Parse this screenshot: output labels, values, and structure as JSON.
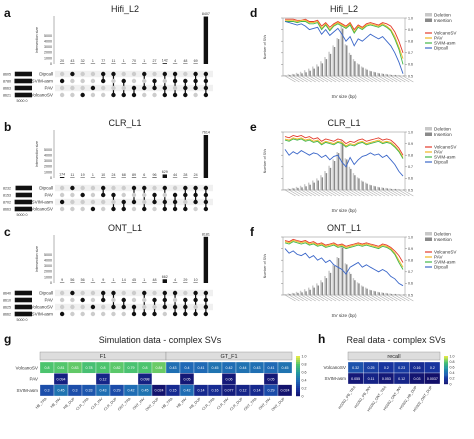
{
  "panels": {
    "a": "a",
    "b": "b",
    "c": "c",
    "d": "d",
    "e": "e",
    "f": "f",
    "g": "g",
    "h": "h"
  },
  "colors": {
    "bar": "#111111",
    "dot_on": "#111111",
    "dot_off": "#cccccc",
    "hist_deletion": "#c8c8c8",
    "hist_insertion": "#8a8a8a",
    "VolcanoSV": "#e33b2c",
    "PAV": "#f0b623",
    "SVIM-asm": "#42b84a",
    "Dipcall": "#3b67c9"
  },
  "upset": [
    {
      "title": "Hifi_L2",
      "ylabel": "Intersection size",
      "yticks": [
        "5000",
        "4000",
        "3000",
        "2000",
        "1000",
        "0"
      ],
      "sets": [
        "Dipcall",
        "SVIM-asm",
        "PAV",
        "VolcanoSV"
      ],
      "set_sizes": [
        8605,
        8780,
        8663,
        8621
      ],
      "set_size_labels": [
        "8605",
        "8780",
        "8663",
        "8621"
      ],
      "set_axis_label": "5000 0",
      "intersection_labels": [
        "20",
        "43",
        "32",
        "1",
        "77",
        "11",
        "1",
        "70",
        "1",
        "27",
        "142",
        "4",
        "48",
        "69",
        "8407"
      ],
      "intersection_values": [
        20,
        43,
        32,
        1,
        77,
        11,
        1,
        70,
        1,
        27,
        142,
        4,
        48,
        69,
        8407
      ],
      "memberships": [
        [
          1
        ],
        [
          0
        ],
        [
          3
        ],
        [
          2
        ],
        [
          0,
          1
        ],
        [
          0,
          3
        ],
        [
          1,
          3
        ],
        [
          2,
          3
        ],
        [
          0,
          2
        ],
        [
          1,
          2
        ],
        [
          0,
          2,
          3
        ],
        [
          0,
          1,
          3
        ],
        [
          1,
          2,
          3
        ],
        [
          0,
          1,
          2
        ],
        [
          0,
          1,
          2,
          3
        ]
      ]
    },
    {
      "title": "CLR_L1",
      "ylabel": "Intersection size",
      "yticks": [
        "5000",
        "4000",
        "3000",
        "2000",
        "1000",
        "0"
      ],
      "sets": [
        "Dipcall",
        "PAV",
        "SVIM-asm",
        "VolcanoSV"
      ],
      "set_sizes": [
        8232,
        8153,
        8702,
        8663
      ],
      "set_size_labels": [
        "8232",
        "8153",
        "8702",
        "8663"
      ],
      "set_axis_label": "5000 0",
      "intersection_labels": [
        "174",
        "11",
        "19",
        "1",
        "10",
        "24",
        "68",
        "89",
        "6",
        "96",
        "629",
        "44",
        "28",
        "24",
        "7614"
      ],
      "intersection_values": [
        174,
        11,
        19,
        1,
        10,
        24,
        68,
        89,
        6,
        96,
        629,
        44,
        28,
        24,
        7614
      ],
      "memberships": [
        [
          2
        ],
        [
          0
        ],
        [
          1
        ],
        [
          3
        ],
        [
          0,
          1
        ],
        [
          1,
          3
        ],
        [
          2,
          3
        ],
        [
          0,
          2
        ],
        [
          0,
          3
        ],
        [
          1,
          2
        ],
        [
          0,
          2,
          3
        ],
        [
          1,
          2,
          3
        ],
        [
          0,
          1,
          3
        ],
        [
          0,
          1,
          2
        ],
        [
          0,
          1,
          2,
          3
        ]
      ]
    },
    {
      "title": "ONT_L1",
      "ylabel": "Intersection size",
      "yticks": [
        "5000",
        "4000",
        "3000",
        "2000",
        "1000",
        "0"
      ],
      "sets": [
        "Dipcall",
        "PAV",
        "VolcanoSV",
        "SVIM-asm"
      ],
      "set_sizes": [
        8640,
        8610,
        8625,
        8662
      ],
      "set_size_labels": [
        "8640",
        "8610",
        "8625",
        "8662"
      ],
      "set_axis_label": "5000 0",
      "intersection_labels": [
        "9",
        "56",
        "56",
        "1",
        "9",
        "1",
        "14",
        "45",
        "1",
        "48",
        "662",
        "4",
        "29",
        "10",
        "8181"
      ],
      "intersection_values": [
        9,
        56,
        56,
        1,
        9,
        1,
        14,
        45,
        1,
        48,
        662,
        4,
        29,
        10,
        8181
      ],
      "memberships": [
        [
          3
        ],
        [
          0
        ],
        [
          1
        ],
        [
          2
        ],
        [
          0,
          1
        ],
        [
          0,
          2
        ],
        [
          1,
          2
        ],
        [
          2,
          3
        ],
        [
          0,
          3
        ],
        [
          1,
          3
        ],
        [
          0,
          1,
          2
        ],
        [
          0,
          2,
          3
        ],
        [
          1,
          2,
          3
        ],
        [
          0,
          1,
          3
        ],
        [
          0,
          1,
          2,
          3
        ]
      ]
    }
  ],
  "chart_data": [
    {
      "type": "line",
      "panel": "d",
      "title": "Hifi_L2",
      "ylabel": "Number of SVs",
      "xlabel": "SV size (bp)",
      "y2_ticks": [
        "1.0",
        "0.9",
        "0.8",
        "0.7",
        "0.6",
        "0.5"
      ],
      "y2_range": [
        0.5,
        1.0
      ],
      "legend": [
        "Deletion",
        "Insertion",
        "VolcanoSV",
        "PAV",
        "SVIM-asm",
        "Dipcall"
      ],
      "hist_deletion": [
        2,
        3,
        4,
        6,
        8,
        11,
        14,
        18,
        22,
        28,
        36,
        46,
        58,
        72,
        96,
        60,
        44,
        32,
        24,
        18,
        14,
        10,
        8,
        6,
        5,
        4,
        3,
        2,
        2,
        1
      ],
      "hist_insertion": [
        1,
        2,
        3,
        4,
        5,
        7,
        10,
        14,
        18,
        24,
        32,
        42,
        55,
        70,
        90,
        58,
        40,
        28,
        22,
        16,
        12,
        9,
        7,
        5,
        4,
        3,
        2,
        2,
        1,
        1
      ],
      "series": [
        {
          "name": "VolcanoSV",
          "values": [
            0.99,
            0.99,
            0.99,
            0.98,
            0.98,
            0.99,
            0.97,
            0.97,
            0.98,
            0.93,
            0.96,
            0.92,
            0.95,
            0.97,
            0.95,
            0.93,
            0.96,
            0.9,
            0.94,
            0.92,
            0.95,
            0.96,
            0.95,
            0.94,
            0.96,
            0.95,
            0.93,
            0.88,
            0.8,
            0.7
          ]
        },
        {
          "name": "PAV",
          "values": [
            0.98,
            0.98,
            0.98,
            0.97,
            0.98,
            0.98,
            0.96,
            0.96,
            0.97,
            0.91,
            0.95,
            0.9,
            0.94,
            0.96,
            0.94,
            0.92,
            0.95,
            0.88,
            0.93,
            0.91,
            0.94,
            0.95,
            0.94,
            0.93,
            0.95,
            0.93,
            0.9,
            0.84,
            0.75,
            0.65
          ]
        },
        {
          "name": "SVIM-asm",
          "values": [
            0.97,
            0.97,
            0.97,
            0.96,
            0.97,
            0.97,
            0.95,
            0.95,
            0.96,
            0.9,
            0.94,
            0.89,
            0.93,
            0.95,
            0.93,
            0.91,
            0.94,
            0.87,
            0.92,
            0.9,
            0.93,
            0.94,
            0.93,
            0.92,
            0.94,
            0.92,
            0.89,
            0.82,
            0.73,
            0.6
          ]
        },
        {
          "name": "Dipcall",
          "values": [
            0.97,
            0.96,
            0.95,
            0.94,
            0.95,
            0.93,
            0.9,
            0.91,
            0.92,
            0.86,
            0.9,
            0.85,
            0.88,
            0.91,
            0.86,
            0.8,
            0.84,
            0.76,
            0.82,
            0.8,
            0.83,
            0.86,
            0.84,
            0.82,
            0.84,
            0.8,
            0.76,
            0.7,
            0.62,
            0.52
          ]
        }
      ]
    },
    {
      "type": "line",
      "panel": "e",
      "title": "CLR_L1",
      "ylabel": "Number of SVs",
      "xlabel": "SV size (bp)",
      "y2_ticks": [
        "1.0",
        "0.9",
        "0.8",
        "0.7",
        "0.6",
        "0.5"
      ],
      "y2_range": [
        0.5,
        1.0
      ],
      "legend": [
        "Deletion",
        "Insertion",
        "VolcanoSV",
        "PAV",
        "SVIM-asm",
        "Dipcall"
      ],
      "hist_deletion": [
        2,
        3,
        4,
        6,
        8,
        11,
        14,
        18,
        22,
        28,
        36,
        46,
        58,
        72,
        96,
        60,
        44,
        32,
        24,
        18,
        14,
        10,
        8,
        6,
        5,
        4,
        3,
        2,
        2,
        1
      ],
      "hist_insertion": [
        1,
        2,
        3,
        4,
        5,
        7,
        10,
        14,
        18,
        24,
        32,
        42,
        55,
        70,
        90,
        58,
        40,
        28,
        22,
        16,
        12,
        9,
        7,
        5,
        4,
        3,
        2,
        2,
        1,
        1
      ],
      "series": [
        {
          "name": "VolcanoSV",
          "values": [
            0.96,
            0.95,
            0.97,
            0.96,
            0.97,
            0.95,
            0.96,
            0.94,
            0.95,
            0.92,
            0.94,
            0.93,
            0.92,
            0.94,
            0.93,
            0.9,
            0.92,
            0.91,
            0.93,
            0.94,
            0.92,
            0.93,
            0.94,
            0.95,
            0.93,
            0.94,
            0.93,
            0.9,
            0.86,
            0.8
          ]
        },
        {
          "name": "PAV",
          "values": [
            0.94,
            0.93,
            0.95,
            0.94,
            0.95,
            0.93,
            0.94,
            0.92,
            0.93,
            0.9,
            0.92,
            0.91,
            0.9,
            0.92,
            0.91,
            0.88,
            0.9,
            0.89,
            0.91,
            0.92,
            0.9,
            0.91,
            0.92,
            0.93,
            0.91,
            0.92,
            0.91,
            0.88,
            0.84,
            0.78
          ]
        },
        {
          "name": "SVIM-asm",
          "values": [
            0.93,
            0.92,
            0.94,
            0.93,
            0.94,
            0.92,
            0.93,
            0.91,
            0.92,
            0.89,
            0.91,
            0.9,
            0.89,
            0.91,
            0.9,
            0.87,
            0.89,
            0.88,
            0.9,
            0.91,
            0.89,
            0.9,
            0.91,
            0.92,
            0.9,
            0.91,
            0.9,
            0.87,
            0.83,
            0.77
          ]
        },
        {
          "name": "Dipcall",
          "values": [
            0.85,
            0.8,
            0.83,
            0.81,
            0.84,
            0.82,
            0.8,
            0.82,
            0.81,
            0.78,
            0.8,
            0.76,
            0.79,
            0.8,
            0.74,
            0.7,
            0.78,
            0.72,
            0.76,
            0.79,
            0.8,
            0.82,
            0.8,
            0.81,
            0.78,
            0.8,
            0.76,
            0.72,
            0.66,
            0.62
          ]
        }
      ]
    },
    {
      "type": "line",
      "panel": "f",
      "title": "ONT_L1",
      "ylabel": "Number of SVs",
      "xlabel": "SV size (bp)",
      "y2_ticks": [
        "1.0",
        "0.9",
        "0.8",
        "0.7",
        "0.6",
        "0.5"
      ],
      "y2_range": [
        0.5,
        1.0
      ],
      "legend": [
        "Deletion",
        "Insertion",
        "VolcanoSV",
        "PAV",
        "SVIM-asm",
        "Dipcall"
      ],
      "hist_deletion": [
        2,
        3,
        4,
        6,
        8,
        11,
        14,
        18,
        22,
        28,
        36,
        46,
        58,
        72,
        96,
        60,
        44,
        32,
        24,
        18,
        14,
        10,
        8,
        6,
        5,
        4,
        3,
        2,
        2,
        1
      ],
      "hist_insertion": [
        1,
        2,
        3,
        4,
        5,
        7,
        10,
        14,
        18,
        24,
        32,
        42,
        55,
        70,
        90,
        58,
        40,
        28,
        22,
        16,
        12,
        9,
        7,
        5,
        4,
        3,
        2,
        2,
        1,
        1
      ],
      "series": [
        {
          "name": "VolcanoSV",
          "values": [
            0.97,
            0.96,
            0.98,
            0.97,
            0.96,
            0.97,
            0.95,
            0.96,
            0.94,
            0.95,
            0.93,
            0.94,
            0.95,
            0.93,
            0.94,
            0.92,
            0.93,
            0.94,
            0.95,
            0.94,
            0.95,
            0.94,
            0.93,
            0.92,
            0.94,
            0.93,
            0.91,
            0.88,
            0.84,
            0.78
          ]
        },
        {
          "name": "PAV",
          "values": [
            0.96,
            0.95,
            0.97,
            0.96,
            0.95,
            0.96,
            0.94,
            0.95,
            0.93,
            0.94,
            0.92,
            0.93,
            0.94,
            0.92,
            0.93,
            0.91,
            0.92,
            0.93,
            0.94,
            0.93,
            0.94,
            0.93,
            0.92,
            0.91,
            0.93,
            0.92,
            0.9,
            0.86,
            0.8,
            0.74
          ]
        },
        {
          "name": "SVIM-asm",
          "values": [
            0.95,
            0.94,
            0.96,
            0.95,
            0.94,
            0.95,
            0.93,
            0.94,
            0.92,
            0.93,
            0.91,
            0.92,
            0.93,
            0.91,
            0.92,
            0.9,
            0.91,
            0.92,
            0.93,
            0.92,
            0.93,
            0.92,
            0.91,
            0.9,
            0.92,
            0.91,
            0.89,
            0.85,
            0.78,
            0.72
          ]
        },
        {
          "name": "Dipcall",
          "values": [
            0.9,
            0.86,
            0.88,
            0.85,
            0.84,
            0.86,
            0.82,
            0.84,
            0.8,
            0.82,
            0.78,
            0.8,
            0.76,
            0.74,
            0.72,
            0.68,
            0.74,
            0.76,
            0.78,
            0.74,
            0.76,
            0.74,
            0.72,
            0.7,
            0.72,
            0.7,
            0.66,
            0.64,
            0.6,
            0.58
          ]
        }
      ]
    },
    {
      "type": "heatmap",
      "panel": "g",
      "title": "Simulation data - complex SVs",
      "group_headers": [
        "F1",
        "GT_F1"
      ],
      "rows": [
        "VolcanoSV",
        "PAV",
        "SVIM-asm"
      ],
      "columns": [
        "HB_TRA",
        "HB_INV",
        "HB_DUP",
        "CLR_TRA",
        "CLR_INV",
        "CLR_DUP",
        "ONT_TRA",
        "ONT_INV",
        "ONT_DUP",
        "HB_TRA",
        "HB_INV",
        "HB_DUP",
        "CLR_TRA",
        "CLR_INV",
        "CLR_DUP",
        "ONT_TRA",
        "ONT_INV",
        "ONT_DUP"
      ],
      "values": [
        [
          0.8,
          0.81,
          0.83,
          0.78,
          0.8,
          0.82,
          0.79,
          0.8,
          0.84,
          0.43,
          0.4,
          0.41,
          0.45,
          0.42,
          0.44,
          0.43,
          0.41,
          0.45
        ],
        [
          null,
          0.094,
          null,
          null,
          0.12,
          null,
          null,
          0.098,
          null,
          null,
          0.05,
          null,
          null,
          0.06,
          null,
          null,
          0.05,
          null
        ],
        [
          0.3,
          0.45,
          0.3,
          0.33,
          0.43,
          0.29,
          0.42,
          0.45,
          0.024,
          0.15,
          0.42,
          0.14,
          0.16,
          0.077,
          0.12,
          0.14,
          0.29,
          0.024
        ]
      ],
      "colorbar_ticks": [
        "1.0",
        "0.8",
        "0.6",
        "0.4",
        "0.2",
        "0"
      ]
    },
    {
      "type": "heatmap",
      "panel": "h",
      "title": "Real data - complex SVs",
      "group_headers": [
        "recall"
      ],
      "rows": [
        "VolcanoSV",
        "SVIM-asm"
      ],
      "columns": [
        "HG002_PB_TRA",
        "HG002_PB_INV",
        "HG002_ONT_TRA",
        "HG002_ONT_INV",
        "HG002_HB_DUP",
        "HG002_ONT_DUP"
      ],
      "values": [
        [
          0.32,
          0.25,
          0.2,
          0.23,
          0.16,
          0.2
        ],
        [
          0.055,
          0.11,
          0.053,
          0.12,
          0.03,
          0.0037
        ]
      ],
      "colorbar_ticks": [
        "1.0",
        "0.8",
        "0.6",
        "0.4",
        "0.2",
        "0"
      ]
    }
  ]
}
